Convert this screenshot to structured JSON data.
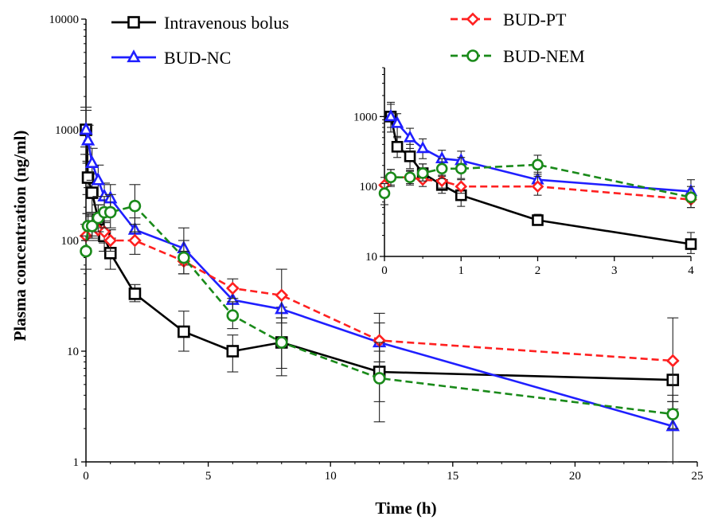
{
  "chart_data": [
    {
      "type": "line",
      "xlabel": "Time (h)",
      "ylabel": "Plasma concentration (ng/ml)",
      "yscale": "log",
      "xlim": [
        0,
        25
      ],
      "ylim": [
        1,
        10000
      ],
      "xticks": [
        0,
        5,
        10,
        15,
        20,
        25
      ],
      "yticks": [
        1,
        10,
        100,
        1000,
        10000
      ],
      "legend_placement": "top",
      "grid": false,
      "series": [
        {
          "name": "Intravenous bolus",
          "color": "#000000",
          "marker": "square",
          "dashed": false,
          "points": [
            {
              "x": 0.0,
              "y": 1000,
              "lo": 700,
              "hi": 1600
            },
            {
              "x": 0.083,
              "y": 370,
              "lo": 260,
              "hi": 520
            },
            {
              "x": 0.25,
              "y": 270,
              "lo": 180,
              "hi": 400
            },
            {
              "x": 0.5,
              "y": 155,
              "lo": 120,
              "hi": 210
            },
            {
              "x": 0.75,
              "y": 110,
              "lo": 80,
              "hi": 150
            },
            {
              "x": 1,
              "y": 77,
              "lo": 55,
              "hi": 105
            },
            {
              "x": 2,
              "y": 33,
              "lo": 28,
              "hi": 40
            },
            {
              "x": 4,
              "y": 15,
              "lo": 10,
              "hi": 23
            },
            {
              "x": 6,
              "y": 10,
              "lo": 6.5,
              "hi": 14
            },
            {
              "x": 8,
              "y": 12,
              "lo": 6,
              "hi": 25
            },
            {
              "x": 12,
              "y": 6.5,
              "lo": 3.5,
              "hi": 10
            },
            {
              "x": 24,
              "y": 5.5,
              "lo": 3.5,
              "hi": 8
            }
          ]
        },
        {
          "name": "BUD-NC",
          "color": "#1f1fff",
          "marker": "triangle",
          "dashed": false,
          "points": [
            {
              "x": 0.0,
              "y": 1000,
              "lo": 600,
              "hi": 1500
            },
            {
              "x": 0.083,
              "y": 800,
              "lo": 500,
              "hi": 1100
            },
            {
              "x": 0.25,
              "y": 500,
              "lo": 350,
              "hi": 680
            },
            {
              "x": 0.5,
              "y": 350,
              "lo": 250,
              "hi": 480
            },
            {
              "x": 0.75,
              "y": 250,
              "lo": 180,
              "hi": 330
            },
            {
              "x": 1,
              "y": 240,
              "lo": 180,
              "hi": 320
            },
            {
              "x": 2,
              "y": 125,
              "lo": 100,
              "hi": 160
            },
            {
              "x": 4,
              "y": 85,
              "lo": 60,
              "hi": 130
            },
            {
              "x": 6,
              "y": 29,
              "lo": 22,
              "hi": 38
            },
            {
              "x": 8,
              "y": 24,
              "lo": 18,
              "hi": 32
            },
            {
              "x": 12,
              "y": 12,
              "lo": 8,
              "hi": 18
            },
            {
              "x": 24,
              "y": 2.1,
              "lo": 1,
              "hi": 4
            }
          ]
        },
        {
          "name": "BUD-PT",
          "color": "#ff2020",
          "marker": "diamond",
          "dashed": true,
          "points": [
            {
              "x": 0.0,
              "y": 110,
              "lo": 85,
              "hi": 140
            },
            {
              "x": 0.083,
              "y": 135,
              "lo": 105,
              "hi": 175
            },
            {
              "x": 0.25,
              "y": 135,
              "lo": 110,
              "hi": 165
            },
            {
              "x": 0.5,
              "y": 125,
              "lo": 100,
              "hi": 150
            },
            {
              "x": 0.75,
              "y": 120,
              "lo": 95,
              "hi": 145
            },
            {
              "x": 1,
              "y": 100,
              "lo": 80,
              "hi": 125
            },
            {
              "x": 2,
              "y": 100,
              "lo": 75,
              "hi": 140
            },
            {
              "x": 4,
              "y": 65,
              "lo": 50,
              "hi": 80
            },
            {
              "x": 6,
              "y": 37,
              "lo": 30,
              "hi": 45
            },
            {
              "x": 8,
              "y": 32,
              "lo": 20,
              "hi": 55
            },
            {
              "x": 12,
              "y": 12.5,
              "lo": 8,
              "hi": 22
            },
            {
              "x": 24,
              "y": 8.2,
              "lo": 3,
              "hi": 20
            }
          ]
        },
        {
          "name": "BUD-NEM",
          "color": "#1a8a1a",
          "marker": "circle",
          "dashed": true,
          "points": [
            {
              "x": 0.0,
              "y": 80,
              "lo": 55,
              "hi": 110
            },
            {
              "x": 0.083,
              "y": 135,
              "lo": 100,
              "hi": 175
            },
            {
              "x": 0.25,
              "y": 135,
              "lo": 105,
              "hi": 170
            },
            {
              "x": 0.5,
              "y": 160,
              "lo": 120,
              "hi": 210
            },
            {
              "x": 0.75,
              "y": 180,
              "lo": 130,
              "hi": 250
            },
            {
              "x": 1,
              "y": 180,
              "lo": 130,
              "hi": 260
            },
            {
              "x": 2,
              "y": 205,
              "lo": 120,
              "hi": 320
            },
            {
              "x": 4,
              "y": 70,
              "lo": 50,
              "hi": 100
            },
            {
              "x": 6,
              "y": 21,
              "lo": 16,
              "hi": 28
            },
            {
              "x": 8,
              "y": 12,
              "lo": 7,
              "hi": 20
            },
            {
              "x": 12,
              "y": 5.7,
              "lo": 2.3,
              "hi": 12
            },
            {
              "x": 24,
              "y": 2.7,
              "lo": 2.0,
              "hi": 3.5
            }
          ]
        }
      ]
    },
    {
      "type": "line",
      "xlabel": "",
      "ylabel": "",
      "yscale": "log",
      "xlim": [
        0,
        4
      ],
      "ylim": [
        10,
        5000
      ],
      "xticks": [
        0,
        1,
        2,
        3,
        4
      ],
      "yticks": [
        10,
        100,
        1000
      ],
      "grid": false,
      "series": [
        {
          "name": "Intravenous bolus",
          "color": "#000000",
          "marker": "square",
          "dashed": false,
          "points": [
            {
              "x": 0.083,
              "y": 1000,
              "lo": 700,
              "hi": 1600
            },
            {
              "x": 0.167,
              "y": 370,
              "lo": 260,
              "hi": 520
            },
            {
              "x": 0.333,
              "y": 270,
              "lo": 180,
              "hi": 400
            },
            {
              "x": 0.5,
              "y": 155,
              "lo": 120,
              "hi": 210
            },
            {
              "x": 0.75,
              "y": 105,
              "lo": 80,
              "hi": 140
            },
            {
              "x": 1,
              "y": 75,
              "lo": 52,
              "hi": 105
            },
            {
              "x": 2,
              "y": 33,
              "lo": 28,
              "hi": 40
            },
            {
              "x": 4,
              "y": 15,
              "lo": 11,
              "hi": 22
            }
          ]
        },
        {
          "name": "BUD-NC",
          "color": "#1f1fff",
          "marker": "triangle",
          "dashed": false,
          "points": [
            {
              "x": 0.083,
              "y": 1000,
              "lo": 600,
              "hi": 1500
            },
            {
              "x": 0.167,
              "y": 800,
              "lo": 500,
              "hi": 1100
            },
            {
              "x": 0.333,
              "y": 500,
              "lo": 350,
              "hi": 680
            },
            {
              "x": 0.5,
              "y": 350,
              "lo": 250,
              "hi": 480
            },
            {
              "x": 0.75,
              "y": 250,
              "lo": 180,
              "hi": 330
            },
            {
              "x": 1,
              "y": 235,
              "lo": 180,
              "hi": 320
            },
            {
              "x": 2,
              "y": 125,
              "lo": 100,
              "hi": 160
            },
            {
              "x": 4,
              "y": 85,
              "lo": 60,
              "hi": 125
            }
          ]
        },
        {
          "name": "BUD-PT",
          "color": "#ff2020",
          "marker": "diamond",
          "dashed": true,
          "points": [
            {
              "x": 0.0,
              "y": 105,
              "lo": 85,
              "hi": 135
            },
            {
              "x": 0.083,
              "y": 135,
              "lo": 105,
              "hi": 175
            },
            {
              "x": 0.333,
              "y": 135,
              "lo": 110,
              "hi": 165
            },
            {
              "x": 0.5,
              "y": 125,
              "lo": 100,
              "hi": 150
            },
            {
              "x": 0.75,
              "y": 120,
              "lo": 95,
              "hi": 145
            },
            {
              "x": 1,
              "y": 100,
              "lo": 80,
              "hi": 125
            },
            {
              "x": 2,
              "y": 100,
              "lo": 75,
              "hi": 140
            },
            {
              "x": 4,
              "y": 65,
              "lo": 50,
              "hi": 80
            }
          ]
        },
        {
          "name": "BUD-NEM",
          "color": "#1a8a1a",
          "marker": "circle",
          "dashed": true,
          "points": [
            {
              "x": 0.0,
              "y": 80,
              "lo": 55,
              "hi": 110
            },
            {
              "x": 0.083,
              "y": 135,
              "lo": 100,
              "hi": 175
            },
            {
              "x": 0.333,
              "y": 135,
              "lo": 105,
              "hi": 170
            },
            {
              "x": 0.5,
              "y": 155,
              "lo": 120,
              "hi": 210
            },
            {
              "x": 0.75,
              "y": 180,
              "lo": 130,
              "hi": 250
            },
            {
              "x": 1,
              "y": 180,
              "lo": 130,
              "hi": 260
            },
            {
              "x": 2,
              "y": 205,
              "lo": 150,
              "hi": 280
            },
            {
              "x": 4,
              "y": 70,
              "lo": 50,
              "hi": 100
            }
          ]
        }
      ]
    }
  ]
}
